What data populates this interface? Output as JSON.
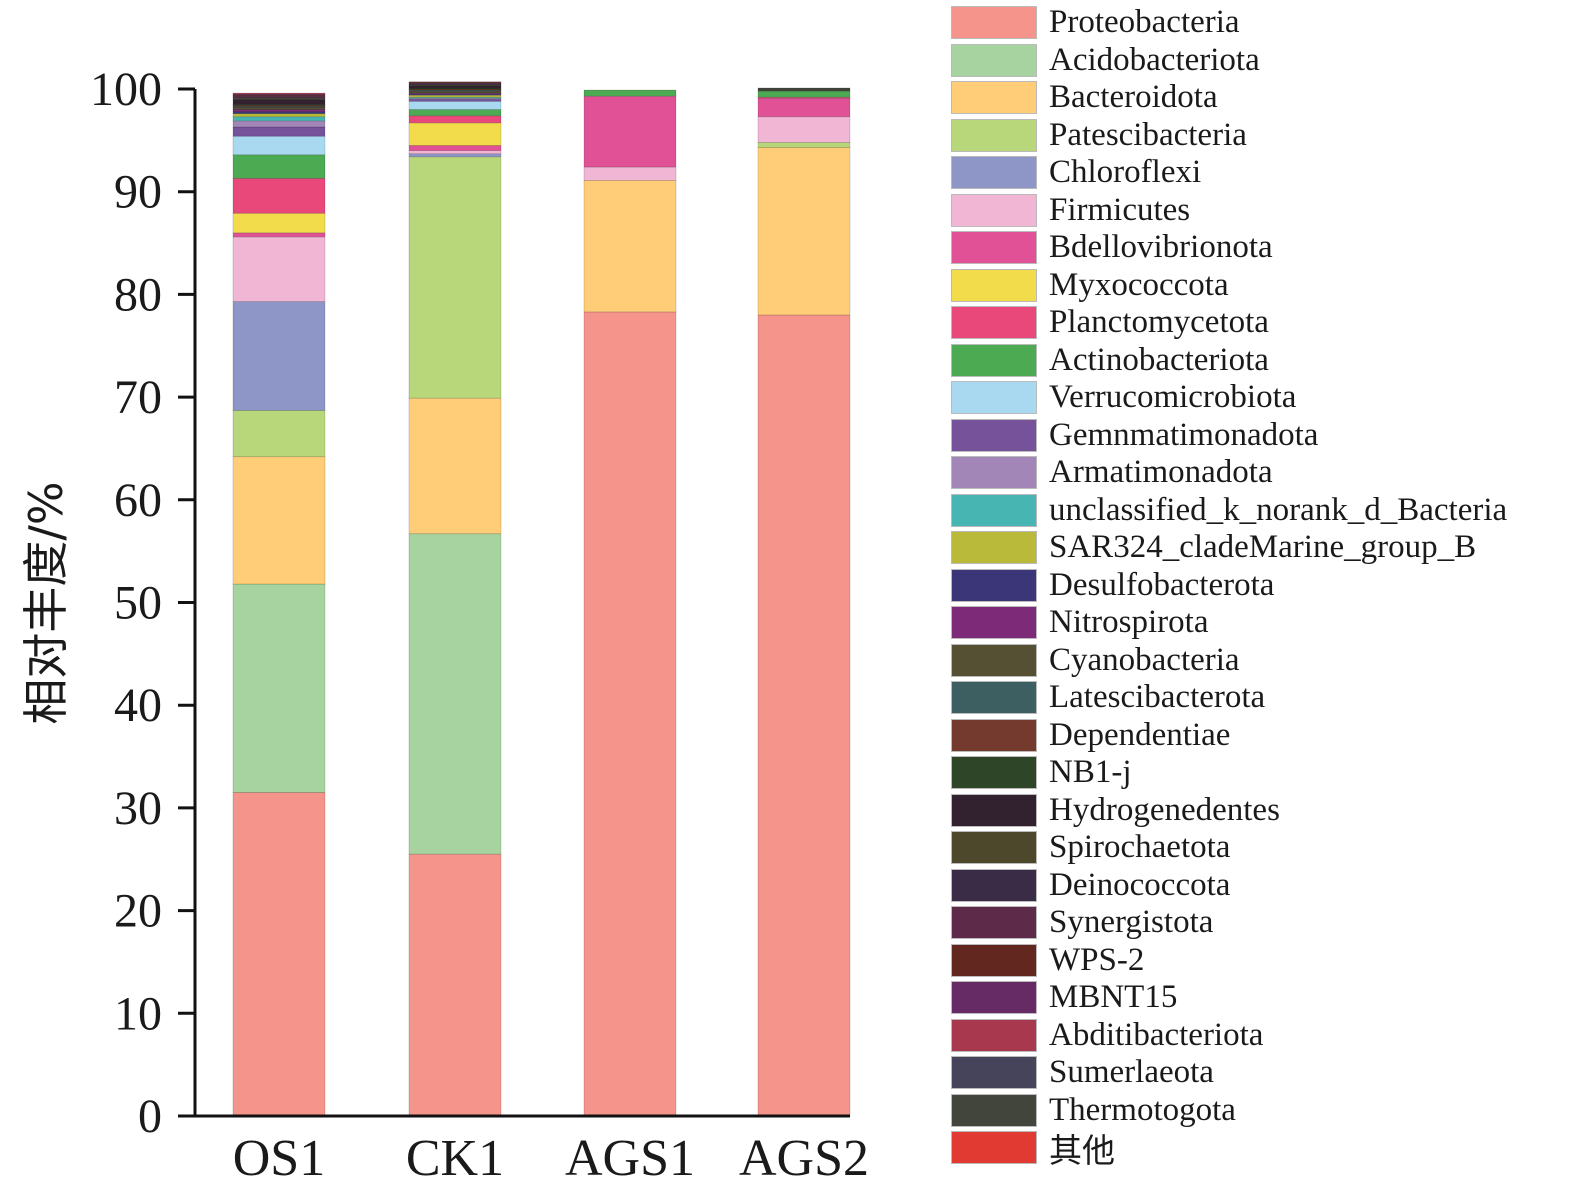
{
  "chart_data": {
    "type": "bar",
    "stacked": true,
    "title": "",
    "xlabel": "",
    "ylabel": "相对丰度/%",
    "ylim": [
      0,
      100
    ],
    "yticks": [
      0,
      10,
      20,
      30,
      40,
      50,
      60,
      70,
      80,
      90,
      100
    ],
    "grid": false,
    "legend_position": "right",
    "categories": [
      "OS1",
      "CK1",
      "AGS1",
      "AGS2"
    ],
    "series": [
      {
        "name": "Proteobacteria",
        "color": "#F4948A",
        "values": [
          31.5,
          25.5,
          78.3,
          78.0
        ]
      },
      {
        "name": "Acidobacteriota",
        "color": "#A6D3A0",
        "values": [
          20.3,
          31.2,
          0.0,
          0.0
        ]
      },
      {
        "name": "Bacteroidota",
        "color": "#FFCC77",
        "values": [
          12.4,
          13.2,
          12.8,
          16.3
        ]
      },
      {
        "name": "Patescibacteria",
        "color": "#B8D77A",
        "values": [
          4.5,
          23.5,
          0.0,
          0.5
        ]
      },
      {
        "name": "Chloroflexi",
        "color": "#8E96C8",
        "values": [
          10.6,
          0.3,
          0.0,
          0.0
        ]
      },
      {
        "name": "Firmicutes",
        "color": "#F0B6D4",
        "values": [
          6.3,
          0.3,
          1.3,
          2.5
        ]
      },
      {
        "name": "Bdellovibrionota",
        "color": "#E05295",
        "values": [
          0.4,
          0.5,
          6.9,
          1.8
        ]
      },
      {
        "name": "Myxococcota",
        "color": "#F2DC4C",
        "values": [
          1.9,
          2.2,
          0.0,
          0.0
        ]
      },
      {
        "name": "Planctomycetota",
        "color": "#E8497A",
        "values": [
          3.4,
          0.7,
          0.0,
          0.1
        ]
      },
      {
        "name": "Actinobacteriota",
        "color": "#4BAA52",
        "values": [
          2.3,
          0.6,
          0.6,
          0.6
        ]
      },
      {
        "name": "Verrucomicrobiota",
        "color": "#A9D9F1",
        "values": [
          1.8,
          0.8,
          0.0,
          0.0
        ]
      },
      {
        "name": "Gemnmatimonadota",
        "color": "#76529A",
        "values": [
          0.9,
          0.2,
          0.0,
          0.0
        ]
      },
      {
        "name": "Armatimonadota",
        "color": "#A386B8",
        "values": [
          0.6,
          0.1,
          0.0,
          0.0
        ]
      },
      {
        "name": "unclassified_k_norank_d_Bacteria",
        "color": "#47B5B2",
        "values": [
          0.4,
          0.1,
          0.0,
          0.0
        ]
      },
      {
        "name": "SAR324_cladeMarine_group_B",
        "color": "#B9B93A",
        "values": [
          0.3,
          0.2,
          0.0,
          0.0
        ]
      },
      {
        "name": "Desulfobacterota",
        "color": "#3A3678",
        "values": [
          0.2,
          0.1,
          0.0,
          0.0
        ]
      },
      {
        "name": "Nitrospirota",
        "color": "#7D2A78",
        "values": [
          0.2,
          0.1,
          0.0,
          0.0
        ]
      },
      {
        "name": "Cyanobacteria",
        "color": "#555034",
        "values": [
          0.2,
          0.2,
          0.0,
          0.0
        ]
      },
      {
        "name": "Latescibacterota",
        "color": "#3E5F62",
        "values": [
          0.1,
          0.1,
          0.0,
          0.0
        ]
      },
      {
        "name": "Dependentiae",
        "color": "#733A2D",
        "values": [
          0.1,
          0.1,
          0.0,
          0.0
        ]
      },
      {
        "name": "NB1-j",
        "color": "#2E4528",
        "values": [
          0.1,
          0.1,
          0.0,
          0.0
        ]
      },
      {
        "name": "Hydrogenedentes",
        "color": "#32222F",
        "values": [
          0.5,
          0.2,
          0.0,
          0.0
        ]
      },
      {
        "name": "Spirochaetota",
        "color": "#4D482B",
        "values": [
          0.1,
          0.1,
          0.0,
          0.0
        ]
      },
      {
        "name": "Deinococcota",
        "color": "#3A2C46",
        "values": [
          0.1,
          0.1,
          0.0,
          0.0
        ]
      },
      {
        "name": "Synergistota",
        "color": "#5D2A49",
        "values": [
          0.1,
          0.1,
          0.0,
          0.0
        ]
      },
      {
        "name": "WPS-2",
        "color": "#62271E",
        "values": [
          0.1,
          0.1,
          0.0,
          0.0
        ]
      },
      {
        "name": "MBNT15",
        "color": "#662A64",
        "values": [
          0.1,
          0.0,
          0.0,
          0.0
        ]
      },
      {
        "name": "Abditibacteriota",
        "color": "#A8384D",
        "values": [
          0.1,
          0.0,
          0.0,
          0.0
        ]
      },
      {
        "name": "Sumerlaeota",
        "color": "#46445A",
        "values": [
          0.0,
          0.0,
          0.0,
          0.0
        ]
      },
      {
        "name": "Thermotogota",
        "color": "#42453C",
        "values": [
          0.0,
          0.0,
          0.0,
          0.3
        ]
      },
      {
        "name": "其他",
        "color": "#E03A33",
        "values": [
          0.0,
          0.0,
          0.0,
          0.0
        ]
      }
    ]
  }
}
